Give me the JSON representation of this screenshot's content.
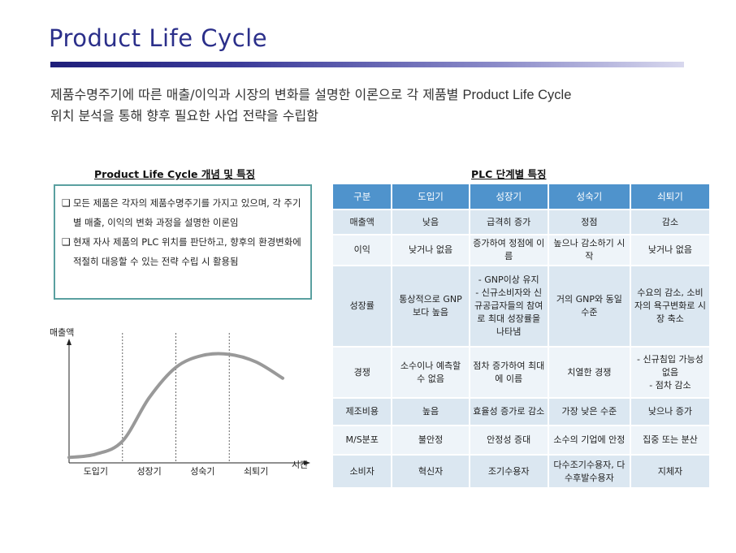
{
  "page": {
    "title": "Product Life Cycle",
    "intro_line1_a": "제품수명주기에 따른 매출/이익과 시장의 변화를 설명한 이론으로 각 제품별 ",
    "intro_line1_b": "Product Life Cycle",
    "intro_line2": "위치 분석을 통해 향후 필요한 사업 전략을 수립함"
  },
  "concept": {
    "heading": "Product Life Cycle 개념 및 특징",
    "bullets": [
      "모든 제품은 각자의 제품수명주기를 가지고 있으며, 각 주기별 매출, 이익의 변화 과정을 설명한 이론임",
      "현재 자사 제품의 PLC 위치를 판단하고, 향후의 환경변화에 적절히 대응할 수 있는 전략 수립 시 활용됨"
    ]
  },
  "chart_data": {
    "type": "line",
    "title": "",
    "ylabel": "매출액",
    "xlabel": "시간",
    "stages": [
      "도입기",
      "성장기",
      "성숙기",
      "쇠퇴기"
    ],
    "series": [
      {
        "name": "매출액",
        "x": [
          0,
          0.5,
          1,
          1.5,
          2,
          2.5,
          3,
          3.5,
          4
        ],
        "values": [
          0.05,
          0.08,
          0.2,
          0.6,
          0.88,
          0.99,
          1.0,
          0.93,
          0.78
        ]
      }
    ],
    "xlim": [
      0,
      4
    ],
    "ylim": [
      0,
      1.1
    ],
    "stage_boundaries": [
      1,
      2,
      3
    ],
    "grid": false
  },
  "table": {
    "heading": "PLC 단계별 특징",
    "headers": [
      "구분",
      "도입기",
      "성장기",
      "성숙기",
      "쇠퇴기"
    ],
    "rows": [
      [
        "매출액",
        "낮음",
        "급격히 증가",
        "정점",
        "감소"
      ],
      [
        "이익",
        "낮거나 없음",
        "증가하여 정점에 이름",
        "높으나 감소하기 시작",
        "낮거나 없음"
      ],
      [
        "성장률",
        "통상적으로 GNP보다 높음",
        "- GNP이상 유지\n- 신규소비자와 신규공급자들의 참여로 최대 성장률을 나타냄",
        "거의 GNP와 동일 수준",
        "수요의 감소, 소비자의 욕구변화로 시장 축소"
      ],
      [
        "경쟁",
        "소수이나 예측할 수 없음",
        "점차 증가하여 최대에 이름",
        "치열한 경쟁",
        "- 신규침입 가능성 없음\n- 점차 감소"
      ],
      [
        "제조비용",
        "높음",
        "효율성 증가로 감소",
        "가장 낮은 수준",
        "낮으나 증가"
      ],
      [
        "M/S분포",
        "불안정",
        "안정성 증대",
        "소수의 기업에 안정",
        "집중 또는 분산"
      ],
      [
        "소비자",
        "혁신자",
        "조기수용자",
        "다수조기수용자, 다수후발수용자",
        "지체자"
      ]
    ]
  }
}
